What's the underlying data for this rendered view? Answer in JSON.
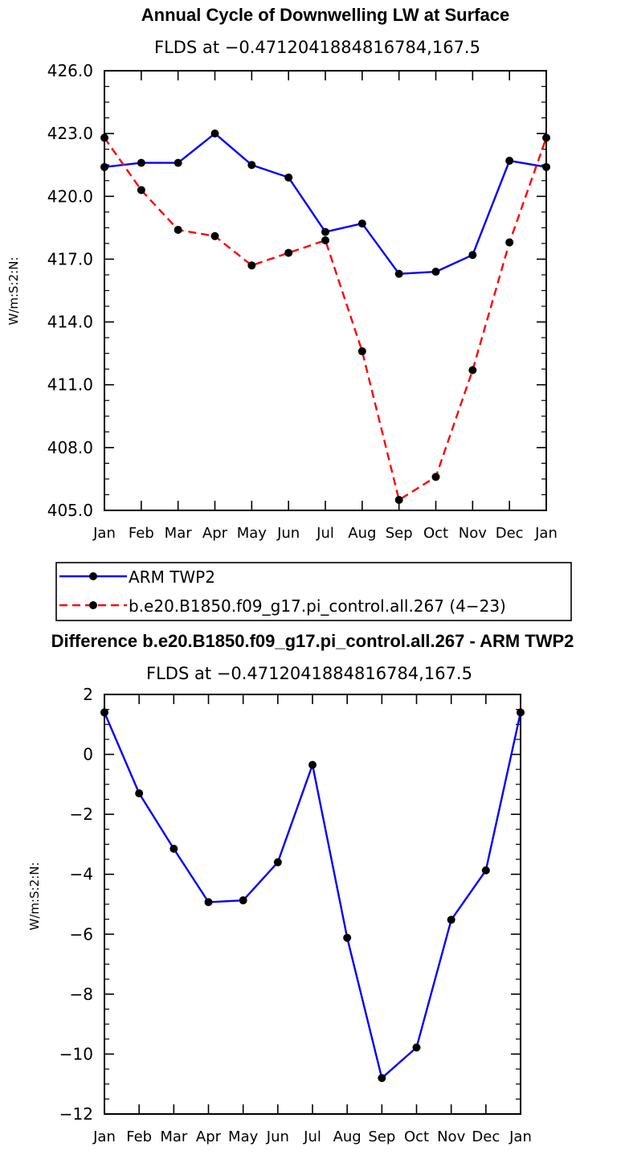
{
  "chart_data": [
    {
      "type": "line",
      "title": "Annual Cycle of Downwelling LW at Surface",
      "subtitle": "FLDS at −0.4712041884816784,167.5",
      "ylabel": "W/m:S:2:N:",
      "xlabel": "",
      "categories": [
        "Jan",
        "Feb",
        "Mar",
        "Apr",
        "May",
        "Jun",
        "Jul",
        "Aug",
        "Sep",
        "Oct",
        "Nov",
        "Dec",
        "Jan"
      ],
      "ylim": [
        405.0,
        426.0
      ],
      "yticks": [
        "405.0",
        "408.0",
        "411.0",
        "414.0",
        "417.0",
        "420.0",
        "423.0",
        "426.0"
      ],
      "ytick_values": [
        405,
        408,
        411,
        414,
        417,
        420,
        423,
        426
      ],
      "series": [
        {
          "name": "ARM TWP2",
          "color": "#0000ff",
          "style": "solid",
          "values": [
            421.4,
            421.6,
            421.6,
            423.0,
            421.5,
            420.9,
            418.3,
            418.7,
            416.3,
            416.4,
            417.2,
            421.7,
            421.4
          ]
        },
        {
          "name": "b.e20.B1850.f09_g17.pi_control.all.267 (4−23)",
          "color": "#ff0000",
          "style": "dashed",
          "values": [
            422.8,
            420.3,
            418.4,
            418.1,
            416.7,
            417.3,
            417.9,
            412.6,
            405.5,
            406.6,
            411.7,
            417.8,
            422.8
          ]
        }
      ]
    },
    {
      "type": "line",
      "title": "Difference b.e20.B1850.f09_g17.pi_control.all.267 - ARM TWP2",
      "subtitle": "FLDS at −0.4712041884816784,167.5",
      "ylabel": "W/m:S:2:N:",
      "xlabel": "",
      "categories": [
        "Jan",
        "Feb",
        "Mar",
        "Apr",
        "May",
        "Jun",
        "Jul",
        "Aug",
        "Sep",
        "Oct",
        "Nov",
        "Dec",
        "Jan"
      ],
      "ylim": [
        -12,
        2
      ],
      "yticks": [
        "−12",
        "−10",
        "−8",
        "−6",
        "−4",
        "−2",
        "0",
        "2"
      ],
      "ytick_values": [
        -12,
        -10,
        -8,
        -6,
        -4,
        -2,
        0,
        2
      ],
      "series": [
        {
          "color": "#0000ff",
          "style": "solid",
          "values": [
            1.4,
            -1.3,
            -3.15,
            -4.93,
            -4.87,
            -3.6,
            -0.35,
            -6.12,
            -10.8,
            -9.78,
            -5.52,
            -3.87,
            1.4
          ]
        }
      ]
    }
  ],
  "legend": {
    "items": [
      {
        "label": "ARM TWP2",
        "color": "#0000ff",
        "style": "solid"
      },
      {
        "label": "b.e20.B1850.f09_g17.pi_control.all.267 (4−23)",
        "color": "#ff0000",
        "style": "dashed"
      }
    ]
  }
}
